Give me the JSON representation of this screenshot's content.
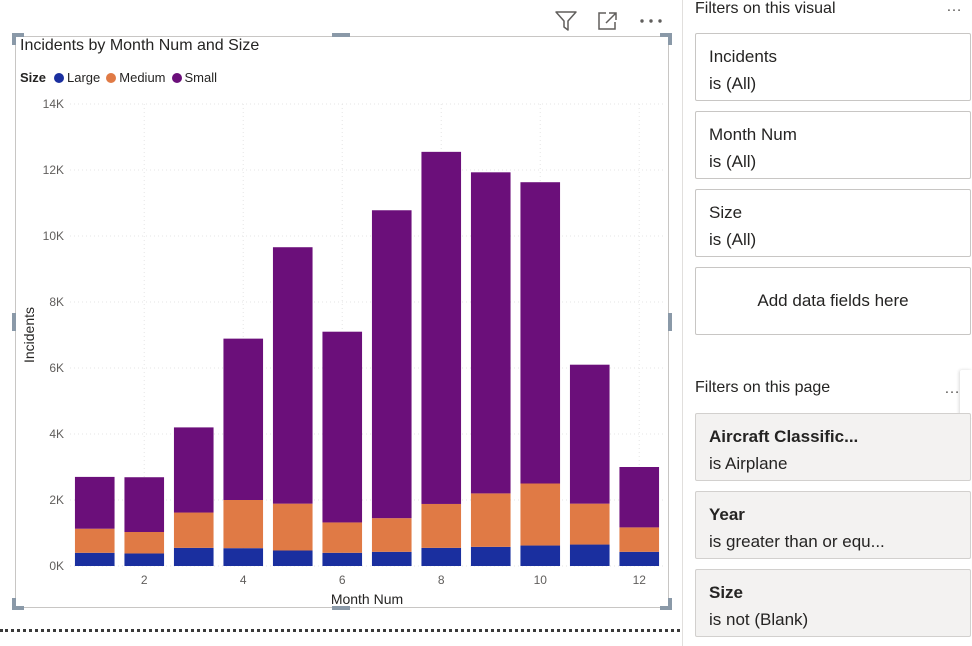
{
  "visual": {
    "title": "Incidents by Month Num and Size",
    "legend_title": "Size"
  },
  "chart_data": {
    "type": "bar",
    "stacked": true,
    "title": "Incidents by Month Num and Size",
    "xlabel": "Month Num",
    "ylabel": "Incidents",
    "categories": [
      1,
      2,
      3,
      4,
      5,
      6,
      7,
      8,
      9,
      10,
      11,
      12
    ],
    "x_tick_labels": [
      "2",
      "4",
      "6",
      "8",
      "10",
      "12"
    ],
    "y_tick_labels": [
      "0K",
      "2K",
      "4K",
      "6K",
      "8K",
      "10K",
      "12K",
      "14K"
    ],
    "ylim": [
      0,
      14000
    ],
    "grid": true,
    "legend_position": "top-left",
    "series": [
      {
        "name": "Large",
        "color": "#1a2f9f",
        "values": [
          400,
          380,
          550,
          540,
          470,
          400,
          430,
          550,
          580,
          620,
          650,
          430
        ]
      },
      {
        "name": "Medium",
        "color": "#e07a45",
        "values": [
          730,
          650,
          1070,
          1460,
          1420,
          920,
          1020,
          1330,
          1620,
          1880,
          1240,
          740
        ]
      },
      {
        "name": "Small",
        "color": "#6b0f7a",
        "values": [
          1570,
          1660,
          2580,
          4890,
          7770,
          5780,
          9330,
          10670,
          9730,
          9130,
          4210,
          1830
        ]
      }
    ]
  },
  "filters": {
    "visual_header": "Filters on this visual",
    "visual_cards": [
      {
        "name": "Incidents",
        "condition": "is (All)"
      },
      {
        "name": "Month Num",
        "condition": "is (All)"
      },
      {
        "name": "Size",
        "condition": "is (All)"
      }
    ],
    "add_fields": "Add data fields here",
    "page_header": "Filters on this page",
    "page_cards": [
      {
        "name": "Aircraft Classific...",
        "condition": "is Airplane"
      },
      {
        "name": "Year",
        "condition": "is greater than or equ..."
      },
      {
        "name": "Size",
        "condition": "is not (Blank)"
      }
    ],
    "more_glyph": "…"
  },
  "icons": {
    "filter": "filter-icon",
    "focus": "focus-mode-icon",
    "more": "more-options-icon"
  }
}
